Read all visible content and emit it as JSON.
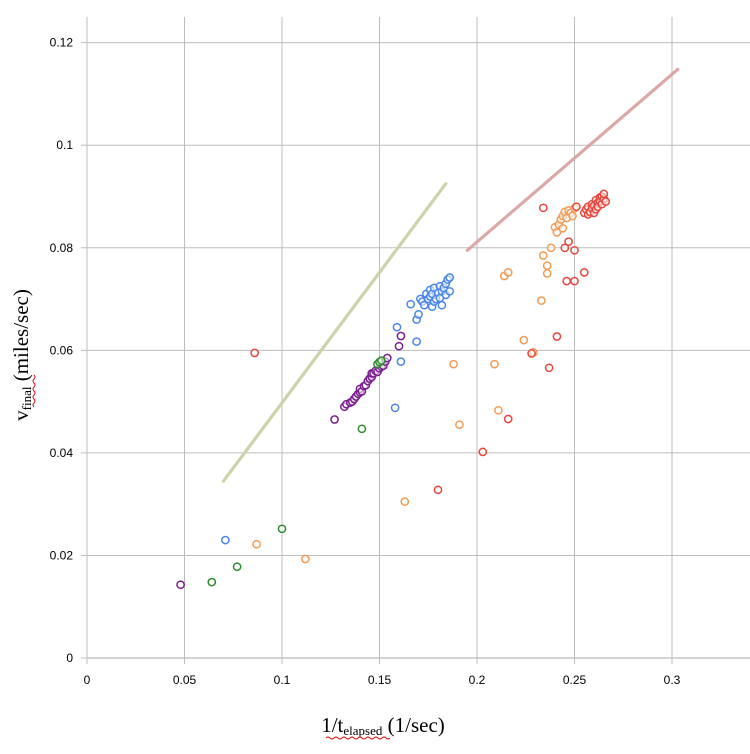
{
  "chart_data": {
    "type": "scatter",
    "title": "",
    "xlabel": {
      "main": "1/t",
      "sub": "elapsed",
      "unit": " (1/sec)"
    },
    "ylabel": {
      "main": "v",
      "sub": "final",
      "unit": " (miles/sec)"
    },
    "xlim": [
      0,
      0.34
    ],
    "ylim": [
      0,
      0.125
    ],
    "grid": true,
    "legend": "none",
    "x_ticks": [
      {
        "value": 0,
        "label": "0"
      },
      {
        "value": 0.05,
        "label": "0.05"
      },
      {
        "value": 0.1,
        "label": "0.1"
      },
      {
        "value": 0.15,
        "label": "0.15"
      },
      {
        "value": 0.2,
        "label": "0.2"
      },
      {
        "value": 0.25,
        "label": "0.25"
      },
      {
        "value": 0.3,
        "label": "0.3"
      }
    ],
    "y_ticks": [
      {
        "value": 0,
        "label": "0"
      },
      {
        "value": 0.02,
        "label": "0.02"
      },
      {
        "value": 0.04,
        "label": "0.04"
      },
      {
        "value": 0.06,
        "label": "0.06"
      },
      {
        "value": 0.08,
        "label": "0.08"
      },
      {
        "value": 0.1,
        "label": "0.1"
      },
      {
        "value": 0.12,
        "label": "0.12"
      }
    ],
    "lines": [
      {
        "color": "#c9d1a6",
        "points": [
          [
            0.07,
            0.0345
          ],
          [
            0.184,
            0.0925
          ]
        ]
      },
      {
        "color": "#d9a3a0",
        "points": [
          [
            0.195,
            0.0795
          ],
          [
            0.303,
            0.1148
          ]
        ]
      }
    ],
    "series": [
      {
        "color": "#7a1e8e",
        "points": [
          [
            0.048,
            0.0143
          ],
          [
            0.127,
            0.0465
          ],
          [
            0.132,
            0.049
          ],
          [
            0.133,
            0.0495
          ],
          [
            0.135,
            0.0498
          ],
          [
            0.136,
            0.05
          ],
          [
            0.137,
            0.0505
          ],
          [
            0.138,
            0.051
          ],
          [
            0.139,
            0.0515
          ],
          [
            0.14,
            0.0518
          ],
          [
            0.14,
            0.0525
          ],
          [
            0.141,
            0.052
          ],
          [
            0.142,
            0.053
          ],
          [
            0.143,
            0.0532
          ],
          [
            0.144,
            0.054
          ],
          [
            0.145,
            0.0545
          ],
          [
            0.146,
            0.0548
          ],
          [
            0.146,
            0.0555
          ],
          [
            0.147,
            0.0555
          ],
          [
            0.148,
            0.056
          ],
          [
            0.149,
            0.0558
          ],
          [
            0.15,
            0.0565
          ],
          [
            0.151,
            0.0568
          ],
          [
            0.152,
            0.057
          ],
          [
            0.153,
            0.0578
          ],
          [
            0.154,
            0.0585
          ],
          [
            0.16,
            0.0608
          ],
          [
            0.161,
            0.0628
          ]
        ]
      },
      {
        "color": "#2e8b2e",
        "points": [
          [
            0.064,
            0.0148
          ],
          [
            0.077,
            0.0178
          ],
          [
            0.1,
            0.0252
          ],
          [
            0.141,
            0.0447
          ],
          [
            0.149,
            0.0573
          ],
          [
            0.15,
            0.0577
          ],
          [
            0.151,
            0.058
          ]
        ]
      },
      {
        "color": "#4a86e8",
        "points": [
          [
            0.071,
            0.023
          ],
          [
            0.158,
            0.0488
          ],
          [
            0.159,
            0.0645
          ],
          [
            0.161,
            0.0578
          ],
          [
            0.166,
            0.069
          ],
          [
            0.169,
            0.0617
          ],
          [
            0.169,
            0.066
          ],
          [
            0.17,
            0.067
          ],
          [
            0.171,
            0.07
          ],
          [
            0.172,
            0.0695
          ],
          [
            0.173,
            0.0688
          ],
          [
            0.174,
            0.071
          ],
          [
            0.175,
            0.07
          ],
          [
            0.176,
            0.0705
          ],
          [
            0.176,
            0.0718
          ],
          [
            0.177,
            0.0685
          ],
          [
            0.177,
            0.071
          ],
          [
            0.178,
            0.0695
          ],
          [
            0.178,
            0.0722
          ],
          [
            0.179,
            0.07
          ],
          [
            0.18,
            0.0712
          ],
          [
            0.181,
            0.0702
          ],
          [
            0.181,
            0.0725
          ],
          [
            0.182,
            0.0688
          ],
          [
            0.182,
            0.0715
          ],
          [
            0.183,
            0.0722
          ],
          [
            0.184,
            0.073
          ],
          [
            0.184,
            0.0708
          ],
          [
            0.185,
            0.0738
          ],
          [
            0.186,
            0.0742
          ],
          [
            0.186,
            0.0715
          ]
        ]
      },
      {
        "color": "#f29b54",
        "points": [
          [
            0.087,
            0.0222
          ],
          [
            0.112,
            0.0193
          ],
          [
            0.163,
            0.0305
          ],
          [
            0.188,
            0.0573
          ],
          [
            0.191,
            0.0455
          ],
          [
            0.209,
            0.0573
          ],
          [
            0.211,
            0.0483
          ],
          [
            0.214,
            0.0745
          ],
          [
            0.216,
            0.0752
          ],
          [
            0.224,
            0.062
          ],
          [
            0.229,
            0.0596
          ],
          [
            0.233,
            0.0697
          ],
          [
            0.234,
            0.0785
          ],
          [
            0.236,
            0.075
          ],
          [
            0.236,
            0.0765
          ],
          [
            0.238,
            0.08
          ],
          [
            0.24,
            0.084
          ],
          [
            0.241,
            0.083
          ],
          [
            0.242,
            0.0845
          ],
          [
            0.243,
            0.0855
          ],
          [
            0.244,
            0.0862
          ],
          [
            0.244,
            0.0838
          ],
          [
            0.245,
            0.087
          ],
          [
            0.246,
            0.0858
          ],
          [
            0.247,
            0.0873
          ],
          [
            0.248,
            0.0868
          ],
          [
            0.249,
            0.0862
          ],
          [
            0.25,
            0.0877
          ]
        ]
      },
      {
        "color": "#e8453c",
        "points": [
          [
            0.086,
            0.0595
          ],
          [
            0.18,
            0.0328
          ],
          [
            0.203,
            0.0402
          ],
          [
            0.216,
            0.0466
          ],
          [
            0.228,
            0.0594
          ],
          [
            0.234,
            0.0878
          ],
          [
            0.237,
            0.0566
          ],
          [
            0.241,
            0.0627
          ],
          [
            0.245,
            0.08
          ],
          [
            0.246,
            0.0735
          ],
          [
            0.247,
            0.0812
          ],
          [
            0.25,
            0.0735
          ],
          [
            0.25,
            0.0795
          ],
          [
            0.251,
            0.088
          ],
          [
            0.255,
            0.0752
          ],
          [
            0.255,
            0.0868
          ],
          [
            0.256,
            0.0875
          ],
          [
            0.257,
            0.088
          ],
          [
            0.257,
            0.0865
          ],
          [
            0.258,
            0.087
          ],
          [
            0.259,
            0.0885
          ],
          [
            0.259,
            0.0877
          ],
          [
            0.26,
            0.0882
          ],
          [
            0.26,
            0.0868
          ],
          [
            0.261,
            0.0893
          ],
          [
            0.261,
            0.0875
          ],
          [
            0.262,
            0.0888
          ],
          [
            0.262,
            0.088
          ],
          [
            0.263,
            0.0898
          ],
          [
            0.263,
            0.089
          ],
          [
            0.264,
            0.0885
          ],
          [
            0.264,
            0.09
          ],
          [
            0.265,
            0.0895
          ],
          [
            0.265,
            0.0905
          ],
          [
            0.266,
            0.089
          ]
        ]
      }
    ]
  }
}
